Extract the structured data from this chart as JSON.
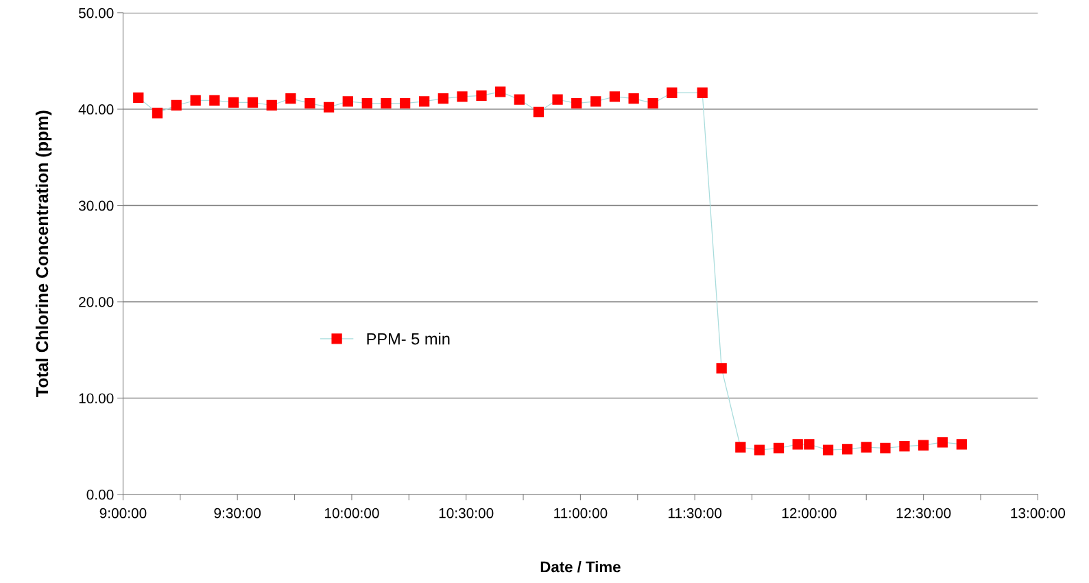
{
  "chart_data": {
    "type": "line",
    "xlabel": "Date / Time",
    "ylabel": "Total Chlorine Concentration (ppm)",
    "x": [
      9.067,
      9.15,
      9.233,
      9.317,
      9.4,
      9.483,
      9.567,
      9.65,
      9.733,
      9.817,
      9.9,
      9.983,
      10.067,
      10.15,
      10.233,
      10.317,
      10.4,
      10.483,
      10.567,
      10.65,
      10.733,
      10.817,
      10.9,
      10.983,
      11.067,
      11.15,
      11.233,
      11.317,
      11.4,
      11.533,
      11.617,
      11.7,
      11.783,
      11.867,
      11.95,
      12.0,
      12.083,
      12.167,
      12.25,
      12.333,
      12.417,
      12.5,
      12.583,
      12.667
    ],
    "series": [
      {
        "name": "PPM- 5 min",
        "color": "#ff0000",
        "values": [
          41.2,
          39.6,
          40.4,
          40.9,
          40.9,
          40.7,
          40.7,
          40.4,
          41.1,
          40.6,
          40.2,
          40.8,
          40.6,
          40.6,
          40.6,
          40.8,
          41.1,
          41.3,
          41.4,
          41.8,
          41.0,
          39.7,
          41.0,
          40.6,
          40.8,
          41.3,
          41.1,
          40.6,
          41.7,
          41.7,
          13.1,
          4.9,
          4.6,
          4.8,
          5.2,
          5.2,
          4.6,
          4.7,
          4.9,
          4.8,
          5.0,
          5.1,
          5.4,
          5.2
        ]
      }
    ],
    "xlim": [
      9,
      13
    ],
    "xticks": [
      {
        "value": 9,
        "label": "9:00:00"
      },
      {
        "value": 9.25,
        "label": null
      },
      {
        "value": 9.5,
        "label": "9:30:00"
      },
      {
        "value": 9.75,
        "label": null
      },
      {
        "value": 10,
        "label": "10:00:00"
      },
      {
        "value": 10.25,
        "label": null
      },
      {
        "value": 10.5,
        "label": "10:30:00"
      },
      {
        "value": 10.75,
        "label": null
      },
      {
        "value": 11,
        "label": "11:00:00"
      },
      {
        "value": 11.25,
        "label": null
      },
      {
        "value": 11.5,
        "label": "11:30:00"
      },
      {
        "value": 11.75,
        "label": null
      },
      {
        "value": 12,
        "label": "12:00:00"
      },
      {
        "value": 12.25,
        "label": null
      },
      {
        "value": 12.5,
        "label": "12:30:00"
      },
      {
        "value": 12.75,
        "label": null
      },
      {
        "value": 13,
        "label": "13:00:00"
      }
    ],
    "ylim": [
      0,
      50
    ],
    "yticks": [
      {
        "value": 0,
        "label": "0.00"
      },
      {
        "value": 10,
        "label": "10.00"
      },
      {
        "value": 20,
        "label": "20.00"
      },
      {
        "value": 30,
        "label": "30.00"
      },
      {
        "value": 40,
        "label": "40.00"
      },
      {
        "value": 50,
        "label": "50.00"
      }
    ],
    "grid": "y",
    "legend": "left",
    "marker": "square",
    "line_style": "solid"
  }
}
